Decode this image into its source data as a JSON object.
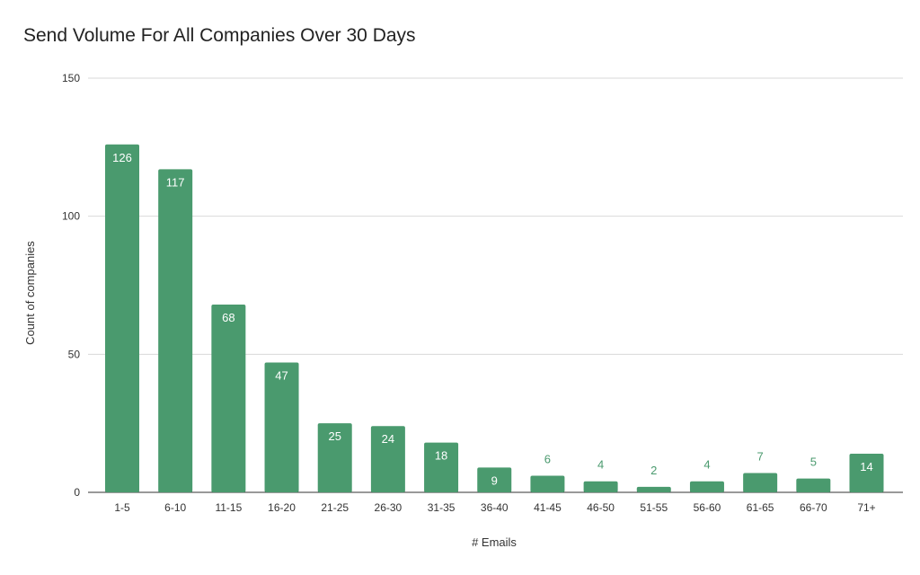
{
  "chart_data": {
    "type": "bar",
    "title": "Send Volume For All Companies Over 30 Days",
    "xlabel": "# Emails",
    "ylabel": "Count of companies",
    "categories": [
      "1-5",
      "6-10",
      "11-15",
      "16-20",
      "21-25",
      "26-30",
      "31-35",
      "36-40",
      "41-45",
      "46-50",
      "51-55",
      "56-60",
      "61-65",
      "66-70",
      "71+"
    ],
    "values": [
      126,
      117,
      68,
      47,
      25,
      24,
      18,
      9,
      6,
      4,
      2,
      4,
      7,
      5,
      14
    ],
    "ylim": [
      0,
      150
    ],
    "yticks": [
      0,
      50,
      100,
      150
    ],
    "grid": true,
    "legend": "none",
    "colors": {
      "bar": "#4a9a6e",
      "label_inside": "#ffffff",
      "label_outside": "#4a9a6e",
      "grid": "#d9d9d9",
      "axis_text": "#333333"
    }
  }
}
